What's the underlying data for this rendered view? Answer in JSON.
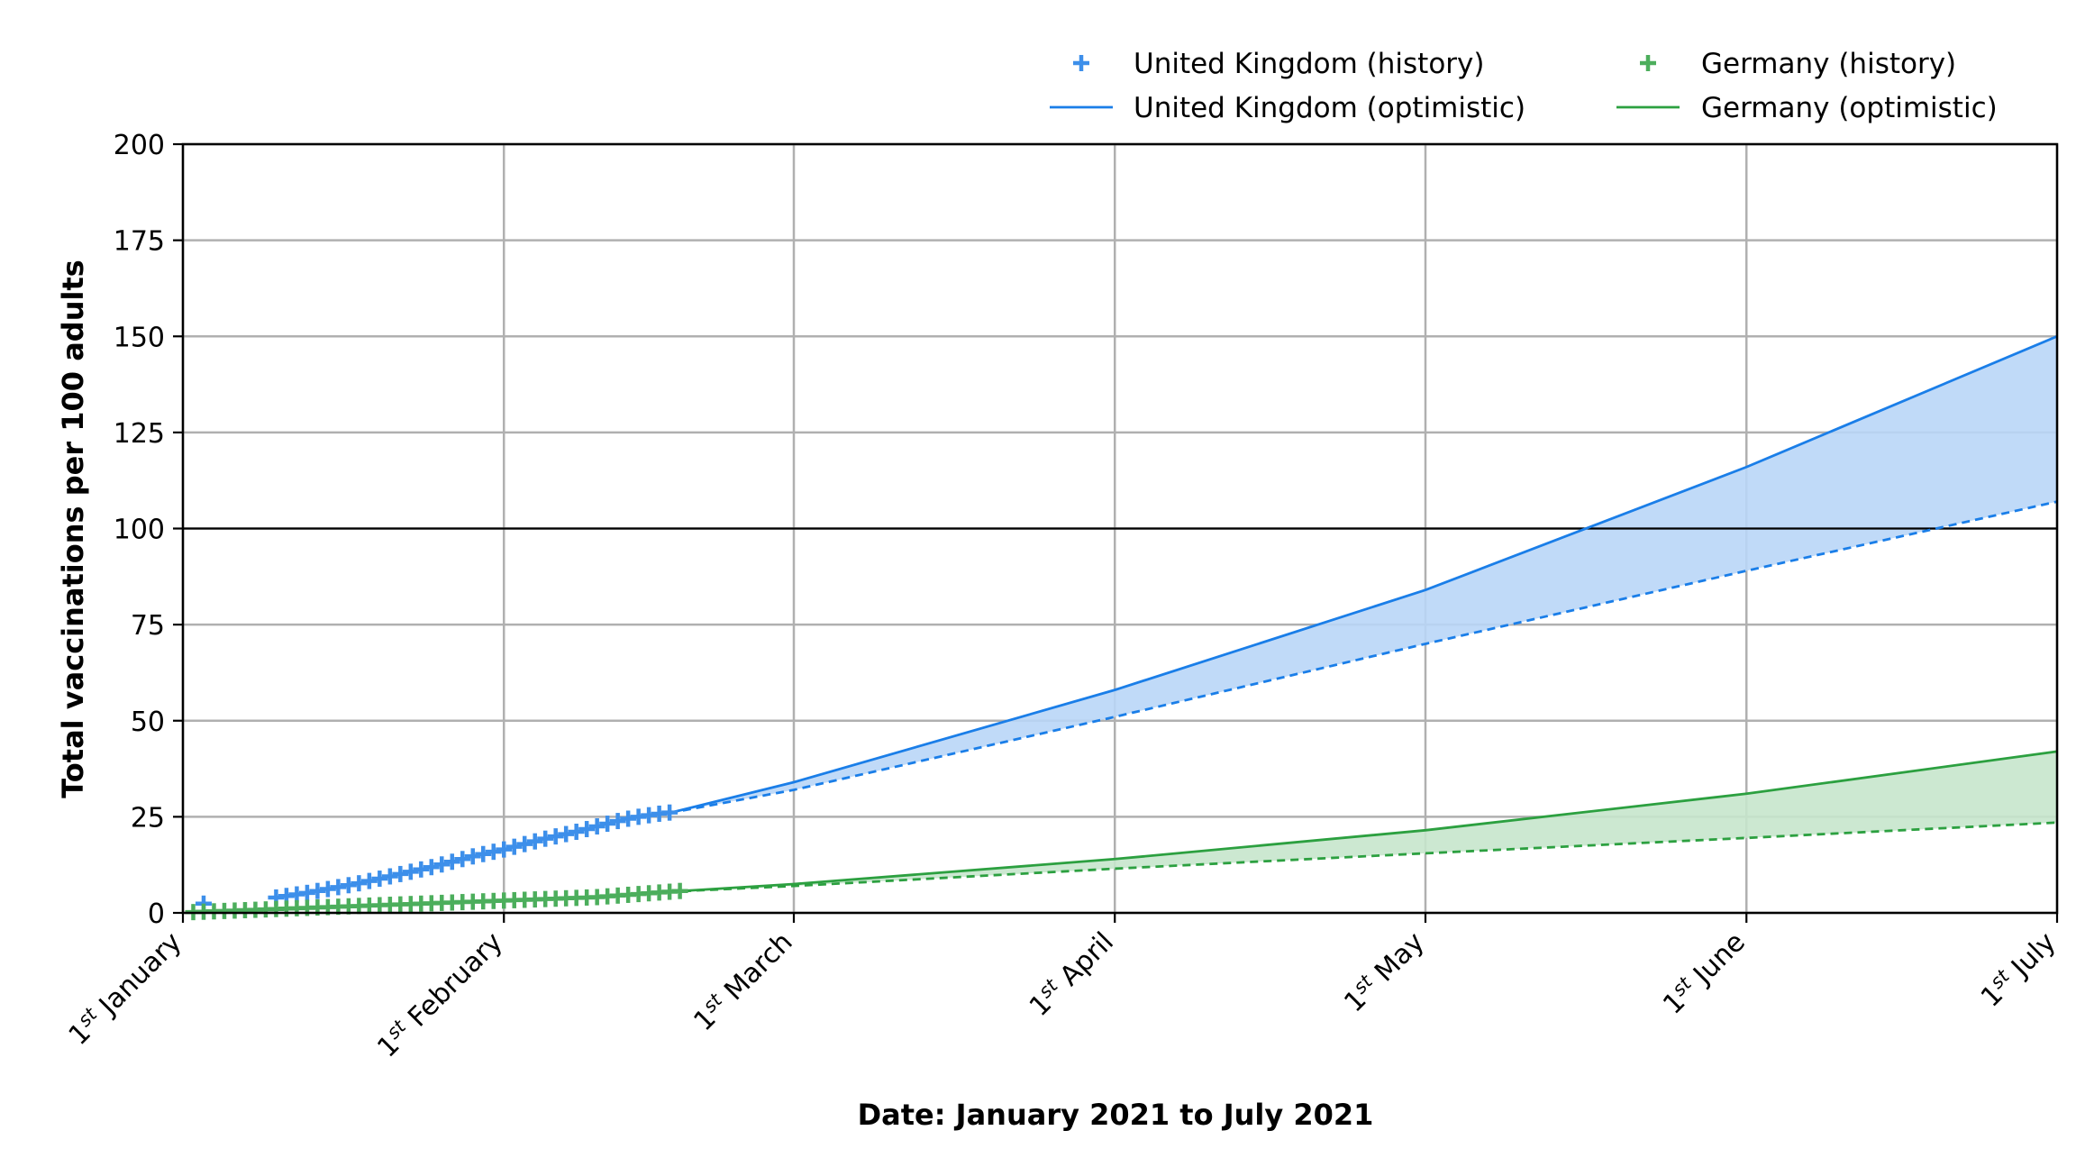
{
  "chart_data": {
    "type": "line",
    "xlabel": "Date: January 2021 to July 2021",
    "ylabel": "Total vaccinations per 100 adults",
    "ylim": [
      0,
      200
    ],
    "yticks": [
      0,
      25,
      50,
      75,
      100,
      125,
      150,
      175,
      200
    ],
    "xlim": [
      "2021-01-01",
      "2021-07-01"
    ],
    "xticks": [
      {
        "date": "2021-01-01",
        "num": "1",
        "sup": "st",
        "month": "January"
      },
      {
        "date": "2021-02-01",
        "num": "1",
        "sup": "st",
        "month": "February"
      },
      {
        "date": "2021-03-01",
        "num": "1",
        "sup": "st",
        "month": "March"
      },
      {
        "date": "2021-04-01",
        "num": "1",
        "sup": "st",
        "month": "April"
      },
      {
        "date": "2021-05-01",
        "num": "1",
        "sup": "st",
        "month": "May"
      },
      {
        "date": "2021-06-01",
        "num": "1",
        "sup": "st",
        "month": "June"
      },
      {
        "date": "2021-07-01",
        "num": "1",
        "sup": "st",
        "month": "July"
      }
    ],
    "grid": true,
    "reference_line": 100,
    "legend_position": "top-right",
    "legend": [
      {
        "label": "United Kingdom (history)",
        "marker": "plus",
        "color": "#3d8fea"
      },
      {
        "label": "Germany (history)",
        "marker": "plus",
        "color": "#4cae5c"
      },
      {
        "label": "United Kingdom (optimistic)",
        "marker": "line",
        "color": "#1a7ee8"
      },
      {
        "label": "Germany (optimistic)",
        "marker": "line",
        "color": "#2ca040"
      }
    ],
    "series": [
      {
        "name": "United Kingdom (history)",
        "kind": "history",
        "color": "#3d8fea",
        "x": [
          "2021-01-03",
          "2021-01-10",
          "2021-01-11",
          "2021-01-12",
          "2021-01-13",
          "2021-01-14",
          "2021-01-15",
          "2021-01-16",
          "2021-01-17",
          "2021-01-18",
          "2021-01-19",
          "2021-01-20",
          "2021-01-21",
          "2021-01-22",
          "2021-01-23",
          "2021-01-24",
          "2021-01-25",
          "2021-01-26",
          "2021-01-27",
          "2021-01-28",
          "2021-01-29",
          "2021-01-30",
          "2021-01-31",
          "2021-02-01",
          "2021-02-02",
          "2021-02-03",
          "2021-02-04",
          "2021-02-05",
          "2021-02-06",
          "2021-02-07",
          "2021-02-08",
          "2021-02-09",
          "2021-02-10",
          "2021-02-11",
          "2021-02-12",
          "2021-02-13",
          "2021-02-14",
          "2021-02-15",
          "2021-02-16",
          "2021-02-17"
        ],
        "y": [
          2.4,
          4.0,
          4.4,
          4.8,
          5.2,
          5.7,
          6.2,
          6.7,
          7.2,
          7.7,
          8.3,
          8.9,
          9.5,
          10.1,
          10.7,
          11.3,
          11.9,
          12.6,
          13.3,
          14.0,
          14.7,
          15.3,
          15.9,
          16.5,
          17.2,
          17.9,
          18.6,
          19.3,
          19.9,
          20.5,
          21.1,
          21.8,
          22.5,
          23.2,
          23.9,
          24.5,
          25.0,
          25.4,
          25.8,
          26.1
        ]
      },
      {
        "name": "Germany (history)",
        "kind": "history",
        "color": "#4cae5c",
        "x": [
          "2021-01-02",
          "2021-01-03",
          "2021-01-04",
          "2021-01-05",
          "2021-01-06",
          "2021-01-07",
          "2021-01-08",
          "2021-01-09",
          "2021-01-10",
          "2021-01-11",
          "2021-01-12",
          "2021-01-13",
          "2021-01-14",
          "2021-01-15",
          "2021-01-16",
          "2021-01-17",
          "2021-01-18",
          "2021-01-19",
          "2021-01-20",
          "2021-01-21",
          "2021-01-22",
          "2021-01-23",
          "2021-01-24",
          "2021-01-25",
          "2021-01-26",
          "2021-01-27",
          "2021-01-28",
          "2021-01-29",
          "2021-01-30",
          "2021-01-31",
          "2021-02-01",
          "2021-02-02",
          "2021-02-03",
          "2021-02-04",
          "2021-02-05",
          "2021-02-06",
          "2021-02-07",
          "2021-02-08",
          "2021-02-09",
          "2021-02-10",
          "2021-02-11",
          "2021-02-12",
          "2021-02-13",
          "2021-02-14",
          "2021-02-15",
          "2021-02-16",
          "2021-02-17",
          "2021-02-18"
        ],
        "y": [
          0.2,
          0.3,
          0.4,
          0.5,
          0.6,
          0.7,
          0.8,
          0.9,
          1.0,
          1.1,
          1.2,
          1.3,
          1.4,
          1.5,
          1.6,
          1.7,
          1.8,
          1.9,
          2.0,
          2.1,
          2.2,
          2.3,
          2.4,
          2.5,
          2.6,
          2.7,
          2.8,
          2.9,
          3.0,
          3.1,
          3.2,
          3.3,
          3.4,
          3.5,
          3.6,
          3.7,
          3.8,
          3.9,
          4.0,
          4.1,
          4.3,
          4.5,
          4.7,
          4.9,
          5.1,
          5.3,
          5.5,
          5.7
        ]
      },
      {
        "name": "United Kingdom (optimistic)",
        "kind": "projection-upper",
        "color": "#1a7ee8",
        "x": [
          "2021-02-17",
          "2021-03-01",
          "2021-04-01",
          "2021-05-01",
          "2021-06-01",
          "2021-07-01"
        ],
        "y": [
          26,
          34,
          58,
          84,
          116,
          150
        ]
      },
      {
        "kind": "projection-lower",
        "color": "#1a7ee8",
        "x": [
          "2021-02-17",
          "2021-03-01",
          "2021-04-01",
          "2021-05-01",
          "2021-06-01",
          "2021-07-01"
        ],
        "y": [
          26,
          32,
          51,
          70,
          89,
          107
        ]
      },
      {
        "name": "Germany (optimistic)",
        "kind": "projection-upper",
        "color": "#2ca040",
        "x": [
          "2021-02-17",
          "2021-03-01",
          "2021-04-01",
          "2021-05-01",
          "2021-06-01",
          "2021-07-01"
        ],
        "y": [
          5.5,
          7.5,
          14,
          21.5,
          31,
          42
        ]
      },
      {
        "kind": "projection-lower",
        "color": "#2ca040",
        "x": [
          "2021-02-17",
          "2021-03-01",
          "2021-04-01",
          "2021-05-01",
          "2021-06-01",
          "2021-07-01"
        ],
        "y": [
          5.5,
          7,
          11.5,
          15.5,
          19.5,
          23.5
        ]
      }
    ],
    "colors": {
      "uk_fill": "#b9d6f7",
      "de_fill": "#c7e6cc",
      "grid": "#b0b0b0",
      "axis": "#000000"
    }
  }
}
